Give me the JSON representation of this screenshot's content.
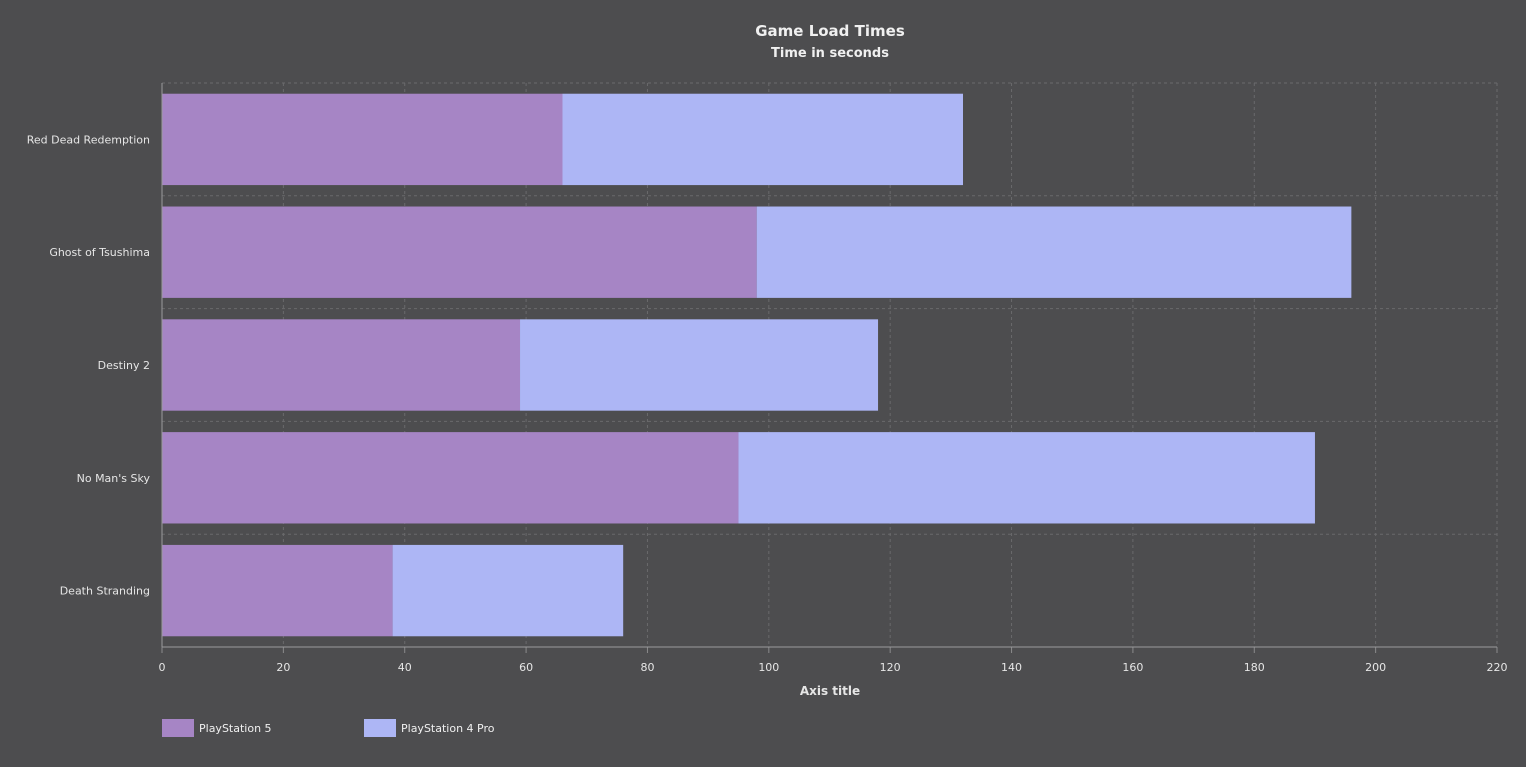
{
  "chart_data": {
    "type": "bar",
    "orientation": "horizontal",
    "stacked": true,
    "title": "Game Load Times",
    "subtitle": "Time in seconds",
    "xlabel": "Axis title",
    "ylabel": "",
    "xlim": [
      0,
      220
    ],
    "xticks": [
      0,
      20,
      40,
      60,
      80,
      100,
      120,
      140,
      160,
      180,
      200,
      220
    ],
    "categories": [
      "Red Dead Redemption",
      "Ghost of Tsushima",
      "Destiny 2",
      "No Man's Sky",
      "Death Stranding"
    ],
    "series": [
      {
        "name": "PlayStation 5",
        "color": "#a685c5",
        "values": [
          66,
          98,
          59,
          95,
          38
        ]
      },
      {
        "name": "PlayStation 4 Pro",
        "color": "#adb6f5",
        "values": [
          66,
          98,
          59,
          95,
          38
        ]
      }
    ],
    "grid": true,
    "legend_position": "bottom-left"
  }
}
